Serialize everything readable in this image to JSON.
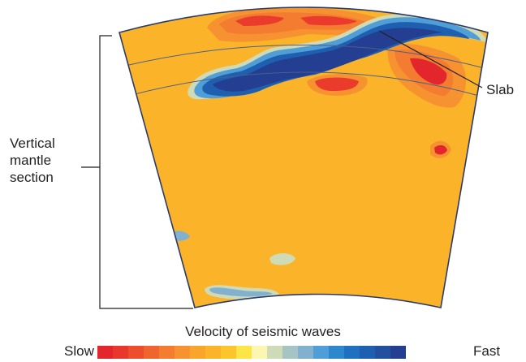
{
  "labels": {
    "vertical_section": [
      "Vertical",
      "mantle",
      "section"
    ],
    "slab": "Slab"
  },
  "legend": {
    "title": "Velocity of seismic waves",
    "slow": "Slow",
    "fast": "Fast",
    "colors": [
      "#e3262b",
      "#e9372b",
      "#ec4e2c",
      "#f0652f",
      "#f37c31",
      "#f6922f",
      "#f9a42a",
      "#fbb42a",
      "#fcc52b",
      "#fde547",
      "#fcf7b0",
      "#cfdbb7",
      "#a7c4c4",
      "#82b1cf",
      "#4f9ed7",
      "#2d87cd",
      "#1f71bf",
      "#1d5fb1",
      "#22509f",
      "#243f91"
    ]
  },
  "colors": {
    "background_mantle": "#fbb42a",
    "slow_anomaly": "#ef4b2f",
    "fast_anomaly": "#1f5fb0",
    "outline": "#2a3b6b"
  }
}
